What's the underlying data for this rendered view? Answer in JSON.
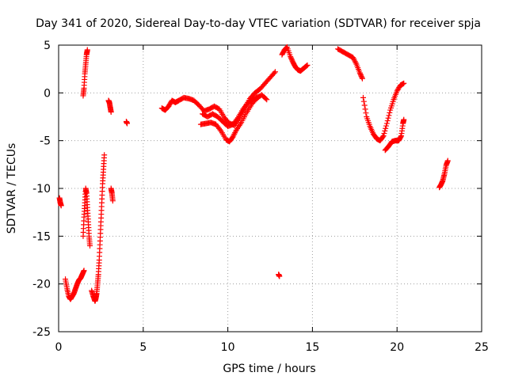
{
  "chart_data": {
    "type": "scatter",
    "title": "Day 341 of 2020, Sidereal Day-to-day VTEC variation (SDTVAR) for receiver spja",
    "xlabel": "GPS time / hours",
    "ylabel": "SDTVAR / TECUs",
    "xlim": [
      0,
      25
    ],
    "ylim": [
      -25,
      5
    ],
    "x_ticks": [
      0,
      5,
      10,
      15,
      20,
      25
    ],
    "y_ticks": [
      -25,
      -20,
      -15,
      -10,
      -5,
      0,
      5
    ],
    "x_tick_labels": [
      "0",
      "5",
      "10",
      "15",
      "20",
      "25"
    ],
    "y_tick_labels": [
      "-25",
      "-20",
      "-15",
      "-10",
      "-5",
      "0",
      "5"
    ],
    "grid": true,
    "marker": "plus",
    "marker_color": "#ff0000",
    "series": [
      {
        "name": "SDTVAR",
        "segments": [
          [
            [
              0.05,
              -11.0
            ],
            [
              0.1,
              -11.5
            ],
            [
              0.15,
              -11.8
            ]
          ],
          [
            [
              0.4,
              -19.5
            ],
            [
              0.5,
              -20.5
            ],
            [
              0.6,
              -21.3
            ],
            [
              0.7,
              -21.6
            ],
            [
              0.8,
              -21.3
            ],
            [
              0.9,
              -21.0
            ],
            [
              1.0,
              -20.5
            ],
            [
              1.1,
              -20.0
            ],
            [
              1.2,
              -19.6
            ],
            [
              1.3,
              -19.4
            ],
            [
              1.4,
              -19.0
            ],
            [
              1.5,
              -18.6
            ]
          ],
          [
            [
              1.45,
              -15.0
            ],
            [
              1.5,
              -13.0
            ],
            [
              1.55,
              -11.5
            ],
            [
              1.6,
              -10.0
            ],
            [
              1.65,
              -10.5
            ],
            [
              1.7,
              -12.0
            ],
            [
              1.75,
              -13.5
            ],
            [
              1.8,
              -15.0
            ],
            [
              1.85,
              -16.0
            ]
          ],
          [
            [
              1.45,
              -0.3
            ],
            [
              1.5,
              0.5
            ],
            [
              1.55,
              2.0
            ],
            [
              1.6,
              3.0
            ],
            [
              1.65,
              4.0
            ],
            [
              1.7,
              4.5
            ]
          ],
          [
            [
              1.95,
              -20.7
            ],
            [
              2.05,
              -21.3
            ],
            [
              2.15,
              -21.8
            ],
            [
              2.2,
              -21.5
            ],
            [
              2.25,
              -21.0
            ],
            [
              2.3,
              -20.0
            ],
            [
              2.35,
              -19.0
            ],
            [
              2.4,
              -17.5
            ],
            [
              2.45,
              -15.5
            ],
            [
              2.5,
              -13.5
            ],
            [
              2.55,
              -11.5
            ],
            [
              2.6,
              -9.5
            ],
            [
              2.65,
              -8.0
            ],
            [
              2.7,
              -6.5
            ]
          ],
          [
            [
              2.95,
              -0.8
            ],
            [
              3.0,
              -1.0
            ],
            [
              3.05,
              -1.5
            ],
            [
              3.1,
              -2.0
            ]
          ],
          [
            [
              3.1,
              -10.0
            ],
            [
              3.15,
              -10.5
            ],
            [
              3.2,
              -11.3
            ]
          ],
          [
            [
              4.0,
              -3.0
            ],
            [
              4.05,
              -3.2
            ]
          ],
          [
            [
              6.1,
              -1.6
            ],
            [
              6.3,
              -1.8
            ],
            [
              6.5,
              -1.4
            ],
            [
              6.7,
              -0.8
            ],
            [
              6.9,
              -1.0
            ],
            [
              7.1,
              -0.8
            ],
            [
              7.4,
              -0.5
            ],
            [
              7.7,
              -0.6
            ],
            [
              8.0,
              -0.8
            ],
            [
              8.3,
              -1.3
            ],
            [
              8.6,
              -1.9
            ],
            [
              8.9,
              -1.7
            ],
            [
              9.2,
              -1.4
            ],
            [
              9.5,
              -1.7
            ],
            [
              9.8,
              -2.6
            ],
            [
              10.1,
              -3.2
            ],
            [
              10.4,
              -3.4
            ],
            [
              10.7,
              -2.6
            ],
            [
              11.0,
              -1.6
            ],
            [
              11.3,
              -0.6
            ],
            [
              11.6,
              0.0
            ],
            [
              11.9,
              0.4
            ],
            [
              12.2,
              1.0
            ],
            [
              12.5,
              1.6
            ],
            [
              12.8,
              2.2
            ]
          ],
          [
            [
              8.4,
              -3.3
            ],
            [
              8.7,
              -3.2
            ],
            [
              9.0,
              -3.1
            ],
            [
              9.3,
              -3.3
            ],
            [
              9.6,
              -4.0
            ],
            [
              9.9,
              -4.9
            ],
            [
              10.1,
              -5.1
            ],
            [
              10.3,
              -4.6
            ],
            [
              10.5,
              -3.9
            ],
            [
              10.8,
              -3.1
            ],
            [
              11.1,
              -2.1
            ],
            [
              11.4,
              -1.2
            ],
            [
              11.7,
              -0.6
            ],
            [
              12.0,
              -0.2
            ],
            [
              12.3,
              -0.7
            ]
          ],
          [
            [
              8.5,
              -2.2
            ],
            [
              8.8,
              -2.5
            ],
            [
              9.1,
              -2.2
            ],
            [
              9.4,
              -2.5
            ],
            [
              9.7,
              -3.0
            ],
            [
              10.0,
              -3.5
            ],
            [
              10.3,
              -3.3
            ],
            [
              10.6,
              -2.6
            ],
            [
              10.9,
              -1.7
            ],
            [
              11.2,
              -1.0
            ],
            [
              11.5,
              -0.6
            ],
            [
              11.8,
              -0.4
            ]
          ],
          [
            [
              13.0,
              -19.0
            ],
            [
              13.05,
              -19.2
            ]
          ],
          [
            [
              13.2,
              4.0
            ],
            [
              13.35,
              4.5
            ],
            [
              13.5,
              4.8
            ],
            [
              13.7,
              3.8
            ],
            [
              13.85,
              3.2
            ],
            [
              14.0,
              2.7
            ],
            [
              14.15,
              2.4
            ],
            [
              14.3,
              2.3
            ],
            [
              14.5,
              2.6
            ],
            [
              14.7,
              2.9
            ]
          ],
          [
            [
              16.5,
              4.6
            ],
            [
              16.8,
              4.3
            ],
            [
              17.1,
              4.0
            ],
            [
              17.4,
              3.7
            ],
            [
              17.6,
              3.0
            ],
            [
              17.8,
              2.1
            ],
            [
              17.95,
              1.5
            ]
          ],
          [
            [
              18.0,
              -0.5
            ],
            [
              18.2,
              -2.5
            ],
            [
              18.4,
              -3.5
            ],
            [
              18.6,
              -4.3
            ],
            [
              18.8,
              -4.8
            ],
            [
              19.0,
              -5.0
            ],
            [
              19.2,
              -4.5
            ],
            [
              19.4,
              -3.2
            ],
            [
              19.6,
              -1.8
            ],
            [
              19.8,
              -0.7
            ],
            [
              20.0,
              0.2
            ],
            [
              20.2,
              0.8
            ],
            [
              20.4,
              1.0
            ]
          ],
          [
            [
              19.3,
              -6.0
            ],
            [
              19.5,
              -5.6
            ],
            [
              19.7,
              -5.1
            ],
            [
              19.9,
              -5.0
            ],
            [
              20.1,
              -5.0
            ],
            [
              20.25,
              -4.5
            ],
            [
              20.35,
              -3.2
            ],
            [
              20.4,
              -2.8
            ]
          ],
          [
            [
              22.5,
              -9.9
            ],
            [
              22.6,
              -9.6
            ],
            [
              22.7,
              -9.2
            ],
            [
              22.8,
              -8.5
            ],
            [
              22.9,
              -7.6
            ],
            [
              23.0,
              -7.1
            ]
          ]
        ]
      }
    ]
  }
}
